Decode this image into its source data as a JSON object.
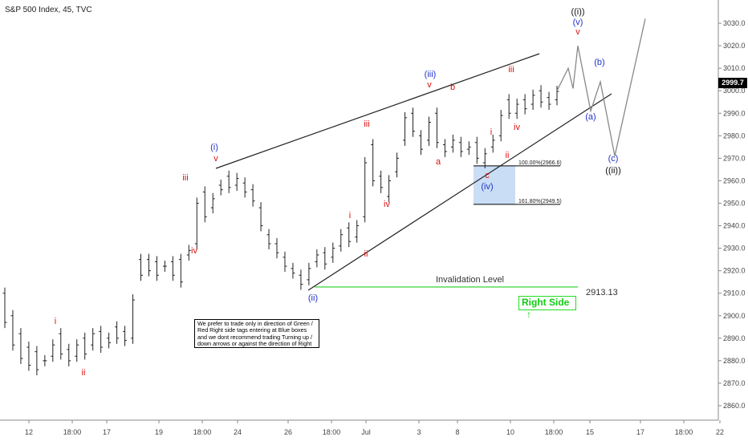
{
  "chart_data": {
    "type": "candlestick",
    "title": "S&P 500 Index, 45, TVC",
    "y_axis": {
      "ticks": [
        2860,
        2870,
        2880,
        2890,
        2900,
        2910,
        2920,
        2930,
        2940,
        2950,
        2960,
        2970,
        2980,
        2990,
        3000,
        3010,
        3020,
        3030
      ],
      "labels": [
        "2860.0",
        "2870.0",
        "2880.0",
        "2890.0",
        "2900.0",
        "2910.0",
        "2920.0",
        "2930.0",
        "2940.0",
        "2950.0",
        "2960.0",
        "2970.0",
        "2980.0",
        "2990.0",
        "3000.0",
        "3010.0",
        "3020.0",
        "3030.0"
      ],
      "range": [
        2855,
        3035
      ],
      "position": "right"
    },
    "x_axis": {
      "labels": [
        "12",
        "18:00",
        "17",
        "19",
        "18:00",
        "24",
        "26",
        "18:00",
        "Jul",
        "3",
        "8",
        "10",
        "18:00",
        "15",
        "17",
        "18:00",
        "22"
      ]
    },
    "last_price": "2999.7",
    "price_path": [
      [
        2910,
        2897
      ],
      [
        2900,
        2887
      ],
      [
        2892,
        2881
      ],
      [
        2886,
        2878
      ],
      [
        2884,
        2876
      ],
      [
        2880,
        2880
      ],
      [
        2882,
        2887
      ],
      [
        2892,
        2883
      ],
      [
        2885,
        2880
      ],
      [
        2882,
        2887
      ],
      [
        2890,
        2883
      ],
      [
        2887,
        2892
      ],
      [
        2893,
        2886
      ],
      [
        2890,
        2888
      ],
      [
        2895,
        2890
      ],
      [
        2893,
        2889
      ],
      [
        2890,
        2907
      ],
      [
        2925,
        2918
      ],
      [
        2925,
        2920
      ],
      [
        2924,
        2918
      ],
      [
        2922,
        2922
      ],
      [
        2924,
        2918
      ],
      [
        2925,
        2915
      ],
      [
        2927,
        2929
      ],
      [
        2932,
        2950
      ],
      [
        2955,
        2944
      ],
      [
        2948,
        2952
      ],
      [
        2958,
        2956
      ],
      [
        2962,
        2957
      ],
      [
        2958,
        2961
      ],
      [
        2959,
        2955
      ],
      [
        2956,
        2951
      ],
      [
        2948,
        2940
      ],
      [
        2936,
        2932
      ],
      [
        2932,
        2928
      ],
      [
        2926,
        2922
      ],
      [
        2921,
        2919
      ],
      [
        2918,
        2914
      ],
      [
        2916,
        2921
      ],
      [
        2924,
        2927
      ],
      [
        2928,
        2923
      ],
      [
        2926,
        2930
      ],
      [
        2931,
        2936
      ],
      [
        2939,
        2933
      ],
      [
        2935,
        2940
      ],
      [
        2944,
        2968
      ],
      [
        2976,
        2960
      ],
      [
        2962,
        2957
      ],
      [
        2953,
        2960
      ],
      [
        2964,
        2970
      ],
      [
        2978,
        2988
      ],
      [
        2990,
        2982
      ],
      [
        2980,
        2974
      ],
      [
        2978,
        2986
      ],
      [
        2990,
        2977
      ],
      [
        2976,
        2973
      ],
      [
        2975,
        2978
      ],
      [
        2977,
        2973
      ],
      [
        2974,
        2975
      ],
      [
        2977,
        2970
      ],
      [
        2968,
        2972
      ],
      [
        2975,
        2978
      ],
      [
        2980,
        2989
      ],
      [
        2996,
        2990
      ],
      [
        2990,
        2994
      ],
      [
        2996,
        2992
      ],
      [
        2994,
        2998
      ],
      [
        3000,
        2995
      ],
      [
        2997,
        2994
      ],
      [
        2996,
        2999.7
      ]
    ],
    "projection": [
      {
        "label": "",
        "value": 3000
      },
      {
        "label": "",
        "value": 3010
      },
      {
        "label": "",
        "value": 3001
      },
      {
        "label": "v",
        "value": 3020
      },
      {
        "label": "(a)",
        "value": 2991
      },
      {
        "label": "(b)",
        "value": 3004
      },
      {
        "label": "(c)",
        "value": 2971
      },
      {
        "label": "",
        "value": 3032
      }
    ],
    "fib_levels": [
      {
        "label": "100.00%(2966.6)",
        "value": 2966.6
      },
      {
        "label": "161.80%(2949.5)",
        "value": 2949.5
      }
    ],
    "invalidation": {
      "label": "Invalidation Level",
      "value": "2913.13"
    },
    "wave_labels": [
      {
        "text": "i",
        "color": "red"
      },
      {
        "text": "ii",
        "color": "red"
      },
      {
        "text": "iii",
        "color": "red"
      },
      {
        "text": "iv",
        "color": "red"
      },
      {
        "text": "v",
        "color": "red"
      },
      {
        "text": "(i)",
        "color": "blue"
      },
      {
        "text": "i",
        "color": "red"
      },
      {
        "text": "ii",
        "color": "red"
      },
      {
        "text": "(ii)",
        "color": "blue"
      },
      {
        "text": "iii",
        "color": "red"
      },
      {
        "text": "iv",
        "color": "red"
      },
      {
        "text": "(iii)",
        "color": "blue"
      },
      {
        "text": "v",
        "color": "red"
      },
      {
        "text": "a",
        "color": "red"
      },
      {
        "text": "b",
        "color": "red"
      },
      {
        "text": "c",
        "color": "red"
      },
      {
        "text": "(iv)",
        "color": "blue"
      },
      {
        "text": "i",
        "color": "red"
      },
      {
        "text": "ii",
        "color": "red"
      },
      {
        "text": "iii",
        "color": "red"
      },
      {
        "text": "iv",
        "color": "red"
      },
      {
        "text": "((i))",
        "color": "black"
      },
      {
        "text": "(v)",
        "color": "blue"
      },
      {
        "text": "v",
        "color": "red"
      },
      {
        "text": "(a)",
        "color": "blue"
      },
      {
        "text": "(b)",
        "color": "blue"
      },
      {
        "text": "(c)",
        "color": "blue"
      },
      {
        "text": "((ii))",
        "color": "black"
      }
    ],
    "colors": {
      "red": "#dd1111",
      "blue": "#2233cc",
      "black": "#111111",
      "green": "#22cc22",
      "fib_box": "#bcd4f3",
      "projection": "#888888"
    }
  },
  "note": "We prefer to trade only in direction of Green / Red Right side tags entering at Blue boxes and we dont recommend trading Turning up / down arrows or against the direction of Right side tags.",
  "right_side_tag": {
    "label": "Right Side",
    "arrow": "↑"
  }
}
